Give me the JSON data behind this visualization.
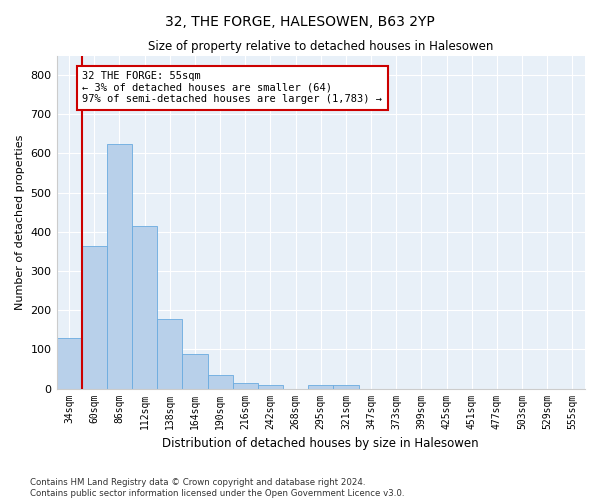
{
  "title": "32, THE FORGE, HALESOWEN, B63 2YP",
  "subtitle": "Size of property relative to detached houses in Halesowen",
  "xlabel": "Distribution of detached houses by size in Halesowen",
  "ylabel": "Number of detached properties",
  "bar_color": "#b8d0ea",
  "bar_edge_color": "#6aabe0",
  "background_color": "#e8f0f8",
  "grid_color": "#ffffff",
  "annotation_box_color": "#cc0000",
  "annotation_line1": "32 THE FORGE: 55sqm",
  "annotation_line2": "← 3% of detached houses are smaller (64)",
  "annotation_line3": "97% of semi-detached houses are larger (1,783) →",
  "marker_line_color": "#cc0000",
  "categories": [
    "34sqm",
    "60sqm",
    "86sqm",
    "112sqm",
    "138sqm",
    "164sqm",
    "190sqm",
    "216sqm",
    "242sqm",
    "268sqm",
    "295sqm",
    "321sqm",
    "347sqm",
    "373sqm",
    "399sqm",
    "425sqm",
    "451sqm",
    "477sqm",
    "503sqm",
    "529sqm",
    "555sqm"
  ],
  "values": [
    128,
    365,
    625,
    415,
    178,
    88,
    35,
    15,
    8,
    0,
    10,
    10,
    0,
    0,
    0,
    0,
    0,
    0,
    0,
    0,
    0
  ],
  "ylim": [
    0,
    850
  ],
  "yticks": [
    0,
    100,
    200,
    300,
    400,
    500,
    600,
    700,
    800
  ],
  "footer": "Contains HM Land Registry data © Crown copyright and database right 2024.\nContains public sector information licensed under the Open Government Licence v3.0.",
  "marker_bar_index": 0.5
}
